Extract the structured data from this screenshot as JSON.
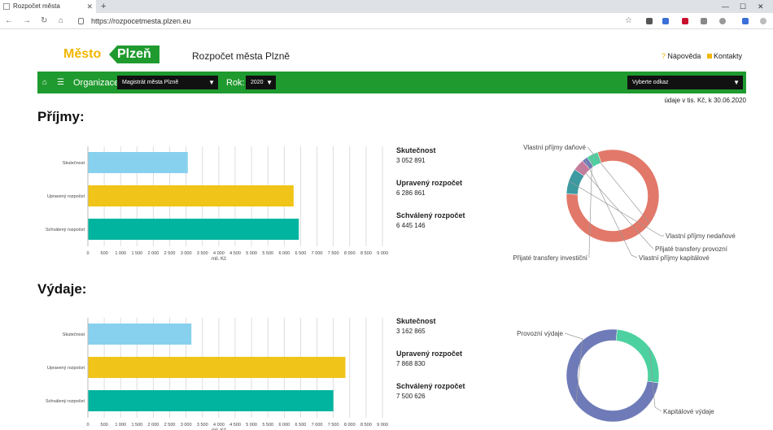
{
  "browser": {
    "tab_title": "Rozpočet města",
    "new_tab": "+",
    "url": "https://rozpocetmesta.plzen.eu"
  },
  "header": {
    "logo_part1": "Město",
    "logo_part2": "Plzeň",
    "title": "Rozpočet města Plzně",
    "help_link": "Nápověda",
    "contacts_link": "Kontakty"
  },
  "toolbar": {
    "org_label": "Organizace:",
    "org_value": "Magistrát města Plzně",
    "year_label": "Rok:",
    "year_value": "2020",
    "link_select": "Vyberte odkaz"
  },
  "units_note": "údaje v tis. Kč, k 30.06.2020",
  "colors": {
    "green": "#1f9a2e",
    "lightblue": "#87d1ee",
    "yellow": "#f0c419",
    "teal": "#00b4a0"
  },
  "income": {
    "title": "Příjmy:",
    "legend": [
      {
        "label": "Skutečnost",
        "value": "3 052 891"
      },
      {
        "label": "Upravený rozpočet",
        "value": "6 286 861"
      },
      {
        "label": "Schválený rozpočet",
        "value": "6 445 146"
      }
    ]
  },
  "expense": {
    "title": "Výdaje:",
    "legend": [
      {
        "label": "Skutečnost",
        "value": "3 162 865"
      },
      {
        "label": "Upravený rozpočet",
        "value": "7 868 830"
      },
      {
        "label": "Schválený rozpočet",
        "value": "7 500 626"
      }
    ]
  },
  "chart_data": [
    {
      "type": "bar",
      "orientation": "horizontal",
      "categories": [
        "Skutečnost",
        "Upravený rozpočet",
        "Schválený rozpočet"
      ],
      "values": [
        3052.891,
        6286.861,
        6445.146
      ],
      "xlabel": "mil. Kč",
      "xlim": [
        0,
        9000
      ],
      "ticks": [
        "0",
        "500",
        "1 000",
        "1 500",
        "2 000",
        "2 500",
        "3 000",
        "3 500",
        "4 000",
        "4 500",
        "5 000",
        "5 500",
        "6 000",
        "6 500",
        "7 000",
        "7 500",
        "8 000",
        "8 500",
        "9 000"
      ],
      "grid": true
    },
    {
      "type": "pie",
      "donut": true,
      "labels": [
        "Vlastní příjmy daňové",
        "Vlastní příjmy nedaňové",
        "Přijaté transfery provozní",
        "Vlastní příjmy kapitálové",
        "Přijaté transfery investiční"
      ],
      "values": [
        81,
        9,
        4,
        2,
        4
      ],
      "colors": [
        "#e27869",
        "#3c9aa0",
        "#c77a9b",
        "#6e7bb8",
        "#4dd1a0"
      ]
    },
    {
      "type": "bar",
      "orientation": "horizontal",
      "categories": [
        "Skutečnost",
        "Upravený rozpočet",
        "Schválený rozpočet"
      ],
      "values": [
        3162.865,
        7868.83,
        7500.626
      ],
      "xlabel": "mil. Kč",
      "xlim": [
        0,
        9000
      ],
      "ticks": [
        "0",
        "500",
        "1 000",
        "1 500",
        "2 000",
        "2 500",
        "3 000",
        "3 500",
        "4 000",
        "4 500",
        "5 000",
        "5 500",
        "6 000",
        "6 500",
        "7 000",
        "7 500",
        "8 000",
        "8 500",
        "9 000"
      ],
      "grid": true
    },
    {
      "type": "pie",
      "donut": true,
      "labels": [
        "Provozní výdaje",
        "Kapitálové výdaje"
      ],
      "values": [
        74,
        26
      ],
      "colors": [
        "#6e7bb8",
        "#4dd1a0"
      ]
    }
  ]
}
